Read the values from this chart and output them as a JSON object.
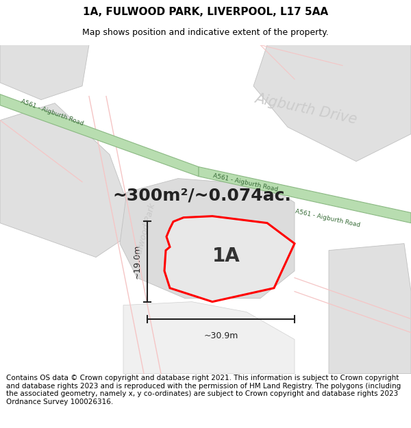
{
  "title": "1A, FULWOOD PARK, LIVERPOOL, L17 5AA",
  "subtitle": "Map shows position and indicative extent of the property.",
  "footer": "Contains OS data © Crown copyright and database right 2021. This information is subject to Crown copyright and database rights 2023 and is reproduced with the permission of HM Land Registry. The polygons (including the associated geometry, namely x, y co-ordinates) are subject to Crown copyright and database rights 2023 Ordnance Survey 100026316.",
  "area_label": "~300m²/~0.074ac.",
  "dim_width": "~30.9m",
  "dim_height": "~19.0m",
  "property_label": "1A",
  "map_bg": "#f8f8f8",
  "road_color": "#b8ddb0",
  "road_border": "#8ab882",
  "road_text_color": "#3a6e3a",
  "building_fill": "#e0e0e0",
  "building_edge": "#c0c0c0",
  "property_fill": "#e8e8e8",
  "property_edge": "#ff0000",
  "dim_color": "#222222",
  "pink": "#f5c5c5",
  "large_road_text": "#cccccc",
  "title_fontsize": 11,
  "subtitle_fontsize": 9,
  "footer_fontsize": 7.5
}
